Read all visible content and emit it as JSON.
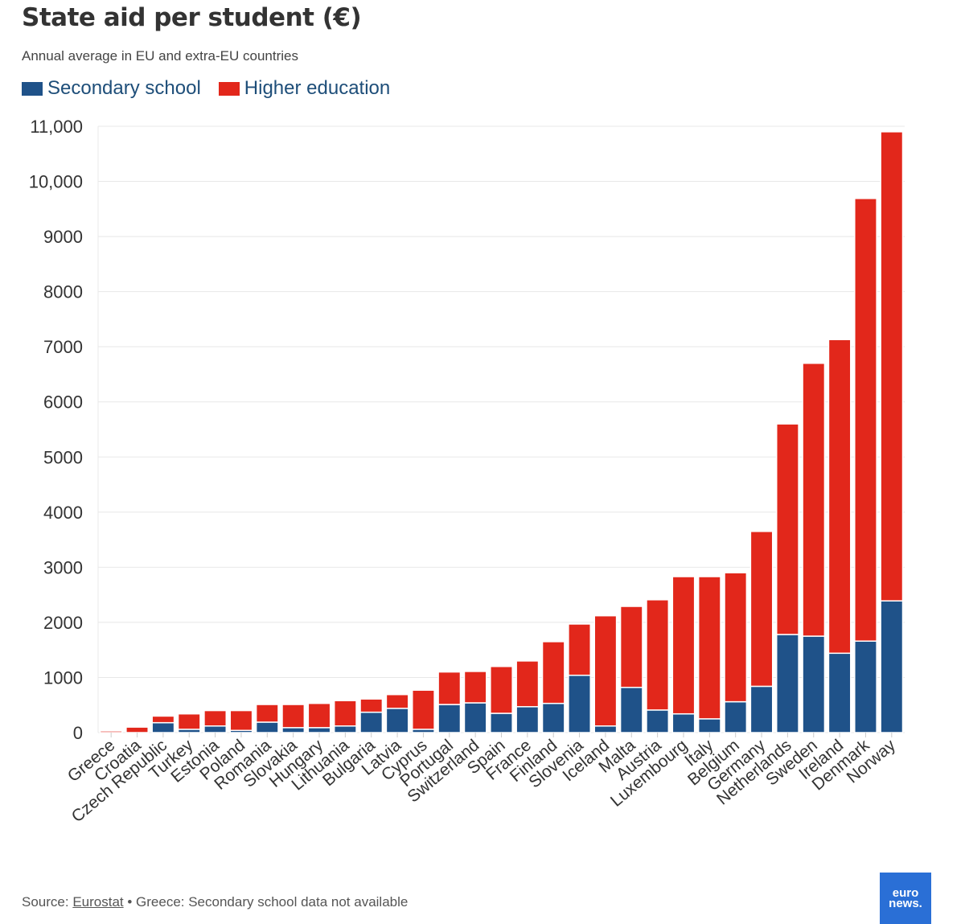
{
  "title": "State aid per student (€)",
  "subtitle": "Annual average in EU and extra-EU countries",
  "source": {
    "prefix": "Source: ",
    "link": "Eurostat",
    "note": " • Greece: Secondary school data not available"
  },
  "logo": "euronews.",
  "colors": {
    "secondary": "#1f5289",
    "higher": "#e2271b",
    "grid": "#e8e8e8"
  },
  "chart_data": {
    "type": "bar",
    "stacked": true,
    "title": "State aid per student (€)",
    "subtitle": "Annual average in EU and extra-EU countries",
    "xlabel": "",
    "ylabel": "",
    "ylim": [
      0,
      11000
    ],
    "yticks": [
      0,
      1000,
      2000,
      3000,
      4000,
      5000,
      6000,
      7000,
      8000,
      9000,
      10000,
      11000
    ],
    "ytick_labels": [
      "0",
      "1000",
      "2000",
      "3000",
      "4000",
      "5000",
      "6000",
      "7000",
      "8000",
      "9000",
      "10,000",
      "11,000"
    ],
    "grid": true,
    "legend": "top-left",
    "categories": [
      "Greece",
      "Croatia",
      "Czech Republic",
      "Turkey",
      "Estonia",
      "Poland",
      "Romania",
      "Slovakia",
      "Hungary",
      "Lithuania",
      "Bulgaria",
      "Latvia",
      "Cyprus",
      "Portugal",
      "Switzerland",
      "Spain",
      "France",
      "Finland",
      "Slovenia",
      "Iceland",
      "Malta",
      "Austria",
      "Luxembourg",
      "Italy",
      "Belgium",
      "Germany",
      "Netherlands",
      "Sweden",
      "Ireland",
      "Denmark",
      "Norway"
    ],
    "series": [
      {
        "name": "Secondary school",
        "values": [
          0,
          0,
          180,
          60,
          120,
          40,
          190,
          90,
          90,
          120,
          370,
          440,
          60,
          510,
          540,
          350,
          470,
          530,
          1040,
          120,
          820,
          410,
          340,
          250,
          560,
          840,
          1780,
          1750,
          1440,
          1660,
          2390
        ]
      },
      {
        "name": "Higher education",
        "values": [
          30,
          100,
          120,
          280,
          280,
          360,
          320,
          420,
          440,
          460,
          240,
          250,
          710,
          590,
          570,
          850,
          830,
          1120,
          930,
          2000,
          1470,
          2000,
          2490,
          2580,
          2340,
          2810,
          3820,
          4950,
          5690,
          8030,
          8510
        ]
      }
    ]
  }
}
